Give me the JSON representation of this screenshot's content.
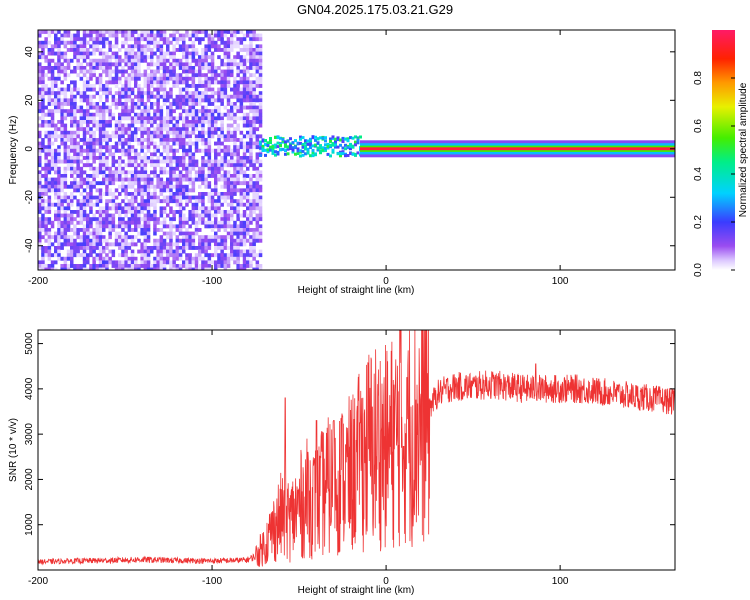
{
  "title": "GN04.2025.175.03.21.G29",
  "chart_data": [
    {
      "type": "heatmap",
      "title": "GN04.2025.175.03.21.G29",
      "xlabel": "Height of straight line (km)",
      "ylabel": "Frequency (Hz)",
      "xlim": [
        -200,
        166
      ],
      "ylim": [
        -50,
        49
      ],
      "xticks": [
        -200,
        -100,
        0,
        100
      ],
      "xtick_labels": [
        "-200",
        "-100",
        "0",
        "100"
      ],
      "yticks": [
        -40,
        -20,
        0,
        20,
        40
      ],
      "ytick_labels": [
        "-40",
        "-20",
        "0",
        "20",
        "40"
      ],
      "colorbar": {
        "label": "Normalized spectral amplitude",
        "range": [
          0,
          1
        ],
        "ticks": [
          0.0,
          0.2,
          0.4,
          0.6,
          0.8
        ],
        "tick_labels": [
          "0.0",
          "0.2",
          "0.4",
          "0.6",
          "0.8"
        ],
        "colormap": "rainbow (white-violet-blue-cyan-green-yellow-orange-red-magenta)"
      },
      "regions": [
        {
          "x_range": [
            -200,
            -73
          ],
          "description": "broadband noise across all frequencies",
          "amplitude": 0.15
        },
        {
          "x_range": [
            -73,
            -15
          ],
          "description": "scattered signal near 0 Hz",
          "freq_center": 1,
          "amplitude": 0.4
        },
        {
          "x_range": [
            -15,
            166
          ],
          "description": "strong narrow line at 0 Hz",
          "freq_center": 0,
          "amplitude": 0.95
        }
      ],
      "grid": false
    },
    {
      "type": "line",
      "xlabel": "Height of straight line (km)",
      "ylabel": "SNR (10 * v/v)",
      "xlim": [
        -200,
        166
      ],
      "ylim": [
        0,
        5300
      ],
      "xticks": [
        -200,
        -100,
        0,
        100
      ],
      "xtick_labels": [
        "-200",
        "-100",
        "0",
        "100"
      ],
      "yticks": [
        1000,
        2000,
        3000,
        4000,
        5000
      ],
      "ytick_labels": [
        "1000",
        "2000",
        "3000",
        "4000",
        "5000"
      ],
      "series": [
        {
          "color": "#ee3333",
          "x": [
            -200,
            -180,
            -160,
            -140,
            -120,
            -100,
            -90,
            -80,
            -75,
            -70,
            -65,
            -60,
            -55,
            -50,
            -45,
            -40,
            -35,
            -30,
            -25,
            -20,
            -15,
            -10,
            -5,
            0,
            5,
            10,
            15,
            20,
            25,
            30,
            35,
            40,
            50,
            60,
            70,
            80,
            90,
            100,
            110,
            120,
            130,
            140,
            150,
            160,
            166
          ],
          "y": [
            180,
            200,
            210,
            230,
            210,
            200,
            210,
            220,
            300,
            550,
            900,
            1200,
            1100,
            1400,
            1600,
            1500,
            1800,
            1900,
            2000,
            2100,
            2400,
            2700,
            2800,
            2700,
            2900,
            3000,
            3100,
            3300,
            3600,
            3900,
            4000,
            4050,
            4050,
            4100,
            4050,
            4000,
            4000,
            4000,
            4000,
            3950,
            3900,
            3850,
            3800,
            3750,
            3700
          ],
          "spikes": [
            {
              "x": -58,
              "y": 3800
            },
            {
              "x": -45,
              "y": 2600
            },
            {
              "x": -40,
              "y": 3300
            },
            {
              "x": -30,
              "y": 3300
            },
            {
              "x": -25,
              "y": 3400
            },
            {
              "x": -15,
              "y": 3250
            },
            {
              "x": -8,
              "y": 3600
            },
            {
              "x": 8,
              "y": 5300
            },
            {
              "x": 12,
              "y": 4250
            },
            {
              "x": 86,
              "y": 4550
            }
          ]
        }
      ],
      "grid": false
    }
  ]
}
